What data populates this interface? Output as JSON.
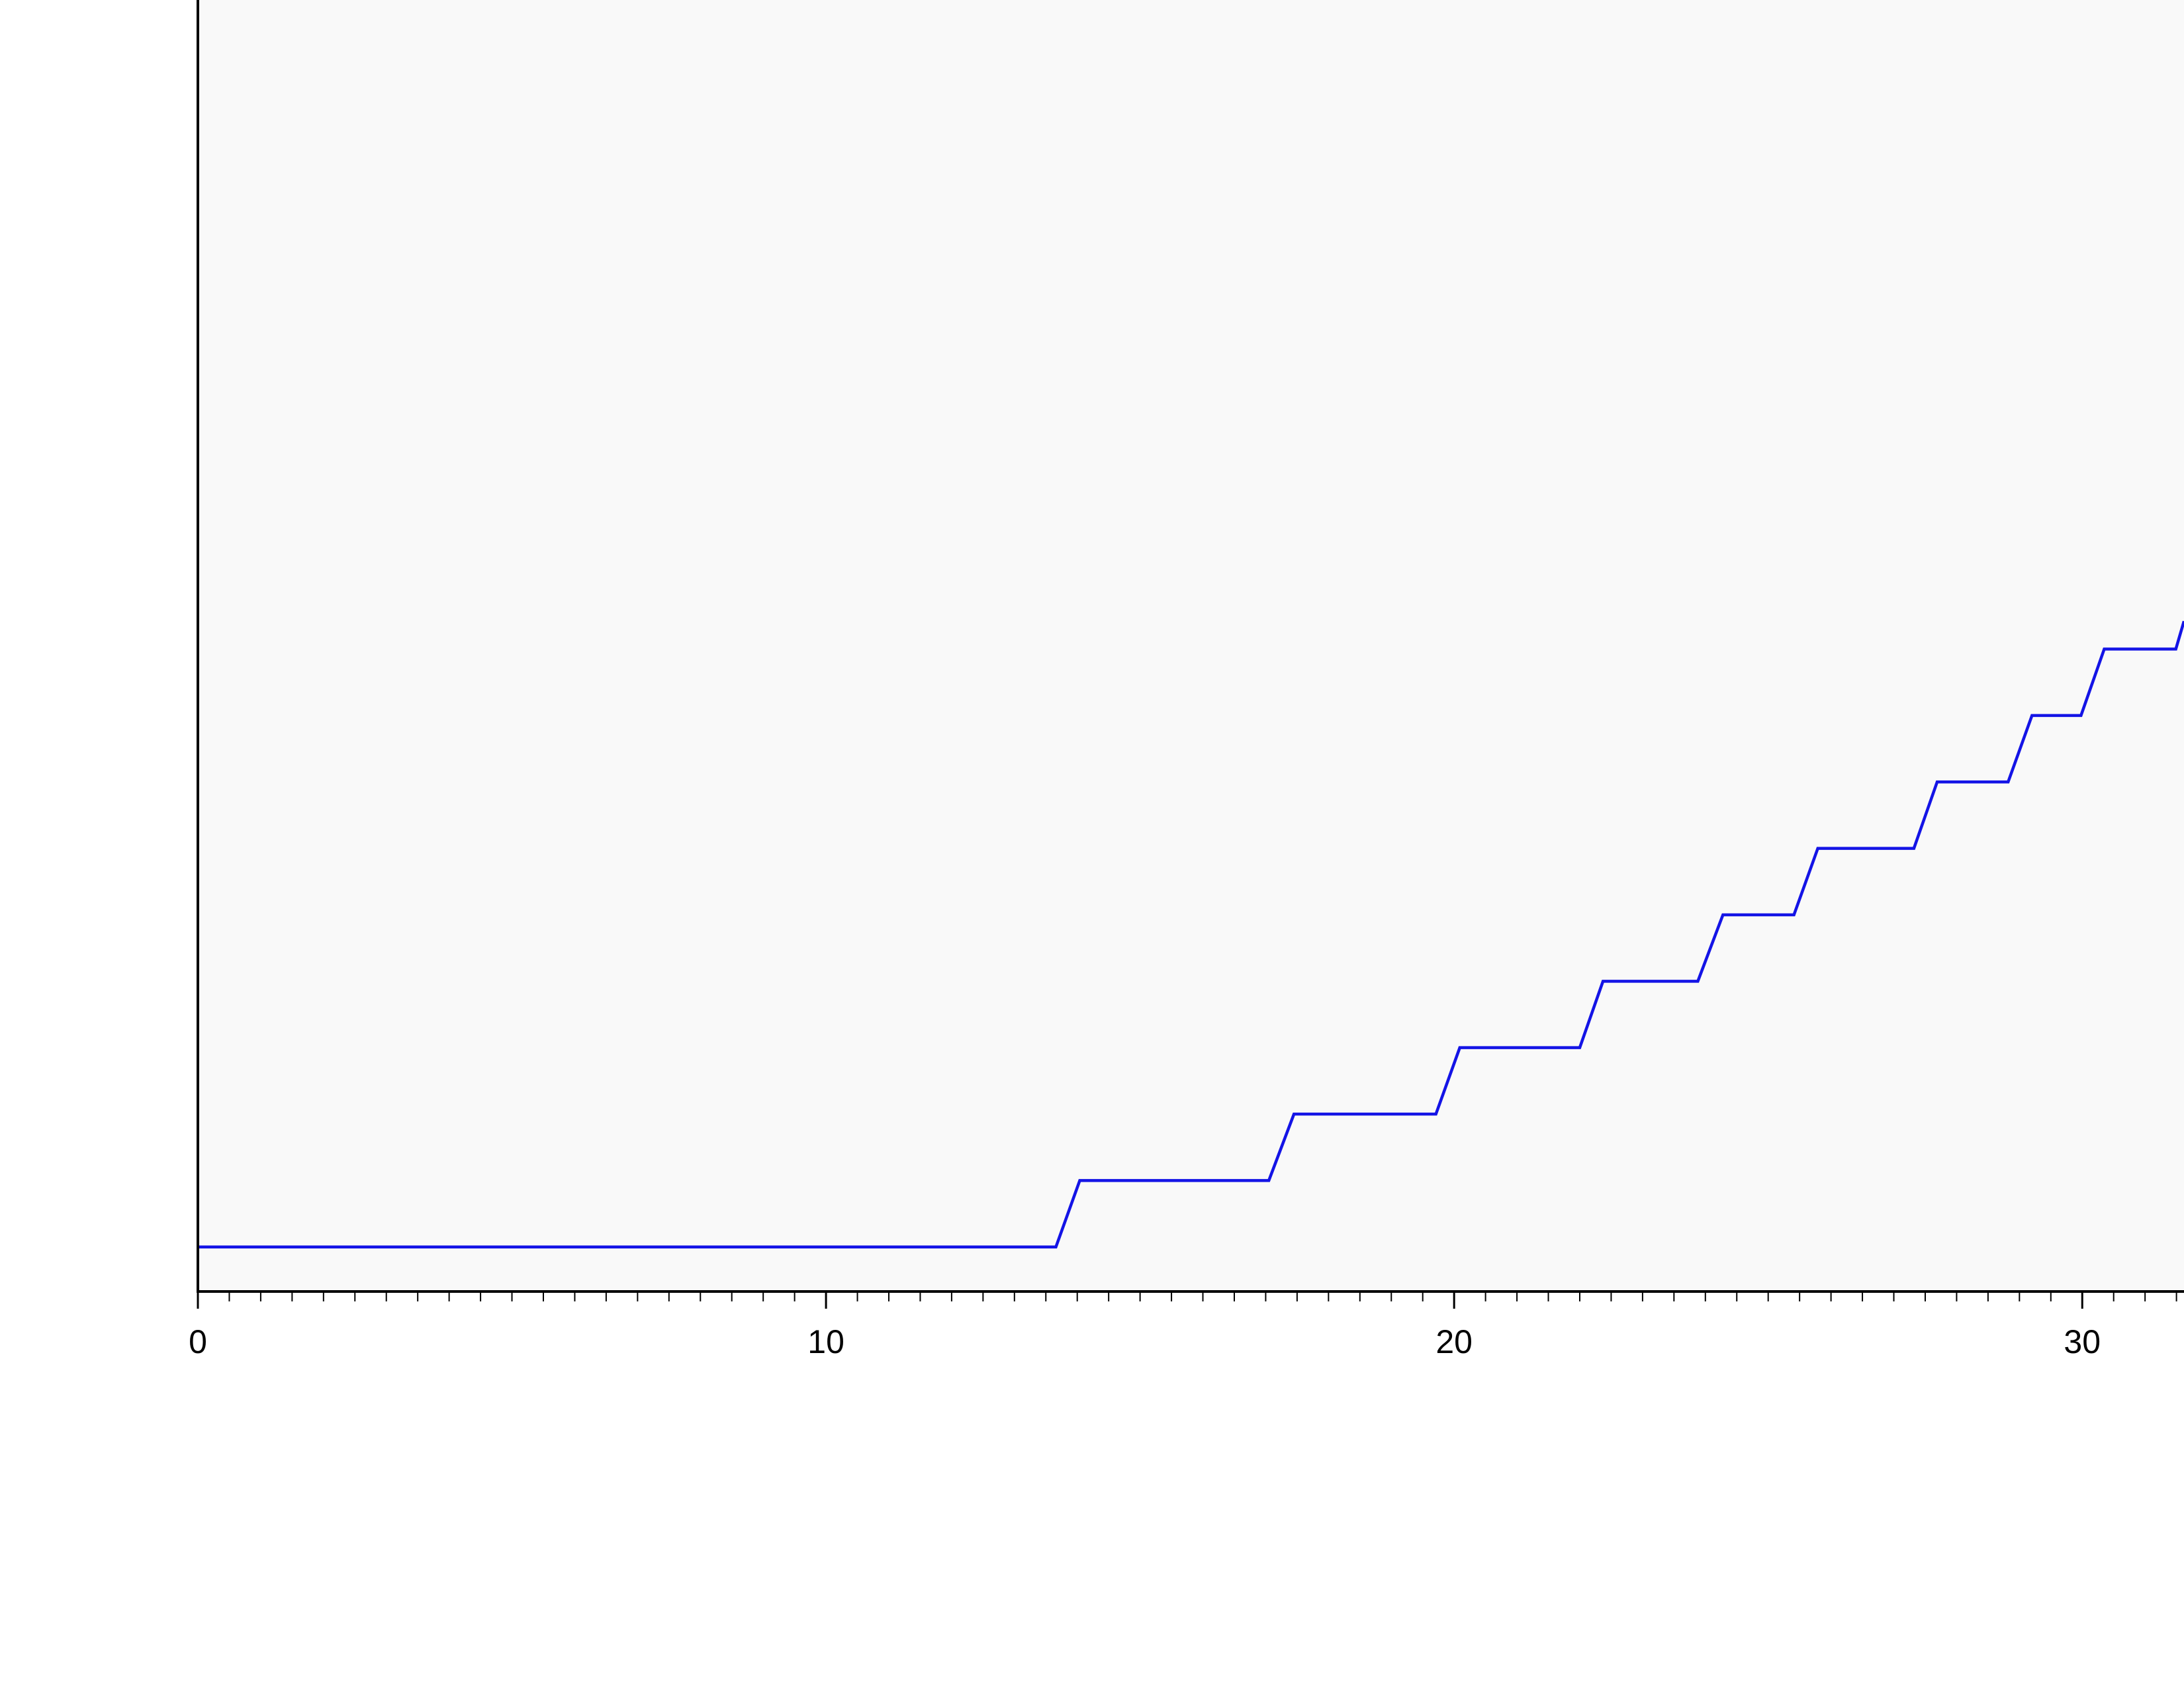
{
  "chart_data": {
    "type": "line",
    "x": [
      0,
      13.66,
      14.04,
      17.05,
      17.45,
      19.71,
      20.09,
      22.0,
      22.37,
      23.88,
      24.28,
      25.41,
      25.79,
      27.32,
      27.69,
      28.82,
      29.2,
      29.98,
      30.35,
      31.49,
      31.62
    ],
    "values": [
      0,
      0,
      1,
      1,
      2,
      2,
      3,
      3,
      4,
      4,
      5,
      5,
      6,
      6,
      7,
      7,
      8,
      8,
      9,
      9,
      9.42
    ],
    "color": "#1414e6",
    "xlim": [
      0,
      31.62
    ],
    "ylim": [
      -0.67,
      18.77
    ],
    "xticks": [
      0,
      10,
      20,
      30
    ],
    "xminorticks": [
      0.5,
      1,
      1.5,
      2,
      2.5,
      3,
      3.5,
      4,
      4.5,
      5,
      5.5,
      6,
      6.5,
      7,
      7.5,
      8,
      8.5,
      9,
      9.5,
      10.5,
      11,
      11.5,
      12,
      12.5,
      13,
      13.5,
      14,
      14.5,
      15,
      15.5,
      16,
      16.5,
      17,
      17.5,
      18,
      18.5,
      19,
      19.5,
      20.5,
      21,
      21.5,
      22,
      22.5,
      23,
      23.5,
      24,
      24.5,
      25,
      25.5,
      26,
      26.5,
      27,
      27.5,
      28,
      28.5,
      29,
      29.5,
      30.5,
      31,
      31.5
    ],
    "grid": false
  }
}
